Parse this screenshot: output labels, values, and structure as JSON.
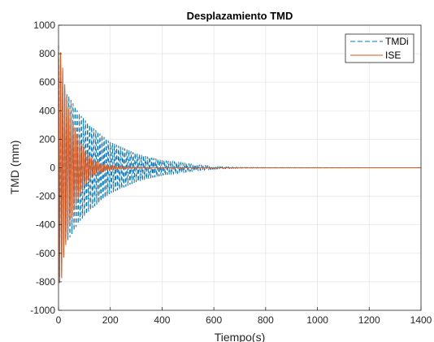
{
  "chart_data": {
    "type": "line",
    "title": "Desplazamiento TMD",
    "xlabel": "Tiempo(s)",
    "ylabel": "TMD (mm)",
    "xlim": [
      0,
      1400
    ],
    "ylim": [
      -1000,
      1000
    ],
    "xticks": [
      "0",
      "200",
      "400",
      "600",
      "800",
      "1000",
      "1200",
      "1400"
    ],
    "yticks": [
      "1000",
      "800",
      "600",
      "400",
      "200",
      "0",
      "-200",
      "-400",
      "-600",
      "-800",
      "-1000"
    ],
    "grid": true,
    "legend_position": "top-right",
    "series": [
      {
        "name": "TMDi",
        "style": "dashed",
        "color": "#0072BD",
        "envelope": {
          "x": [
            0,
            20,
            40,
            80,
            120,
            160,
            200,
            250,
            300,
            350,
            400,
            450,
            500,
            550,
            600,
            650,
            700,
            800,
            1400
          ],
          "y": [
            860,
            540,
            500,
            380,
            300,
            240,
            180,
            140,
            100,
            75,
            55,
            40,
            28,
            18,
            10,
            6,
            3,
            1,
            0
          ]
        },
        "period": 8
      },
      {
        "name": "ISE",
        "style": "solid",
        "color": "#D95319",
        "envelope": {
          "x": [
            0,
            10,
            20,
            30,
            40,
            60,
            80,
            100,
            120,
            140,
            160,
            200,
            250,
            300,
            400,
            1400
          ],
          "y": [
            810,
            810,
            630,
            520,
            420,
            300,
            200,
            130,
            80,
            50,
            30,
            15,
            6,
            3,
            1,
            0
          ]
        },
        "period": 8
      }
    ]
  }
}
